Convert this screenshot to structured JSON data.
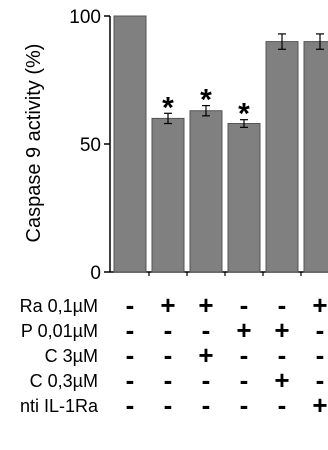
{
  "chart_data": {
    "type": "bar",
    "ylabel": "Caspase 9 activity (%)",
    "ylim": [
      0,
      100
    ],
    "yticks": [
      "0",
      "50",
      "100"
    ],
    "bar_color": "#808080",
    "grid": false,
    "legend": "none",
    "values": [
      100,
      60,
      63,
      58,
      90,
      90
    ],
    "errors": [
      0,
      2,
      2,
      1.5,
      3,
      3
    ],
    "significance": [
      "",
      "*",
      "*",
      "*",
      "",
      ""
    ],
    "conditions": [
      {
        "label": "Ra 0,1µM",
        "signs": [
          "-",
          "+",
          "+",
          "-",
          "-",
          "+"
        ]
      },
      {
        "label": "P 0,01µM",
        "signs": [
          "-",
          "-",
          "-",
          "+",
          "+",
          "-"
        ]
      },
      {
        "label": "C 3µM",
        "signs": [
          "-",
          "-",
          "+",
          "-",
          "-",
          "-"
        ]
      },
      {
        "label": "C 0,3µM",
        "signs": [
          "-",
          "-",
          "-",
          "-",
          "+",
          "-"
        ]
      },
      {
        "label": "nti IL-1Ra",
        "signs": [
          "-",
          "-",
          "-",
          "-",
          "-",
          "+"
        ]
      }
    ]
  }
}
